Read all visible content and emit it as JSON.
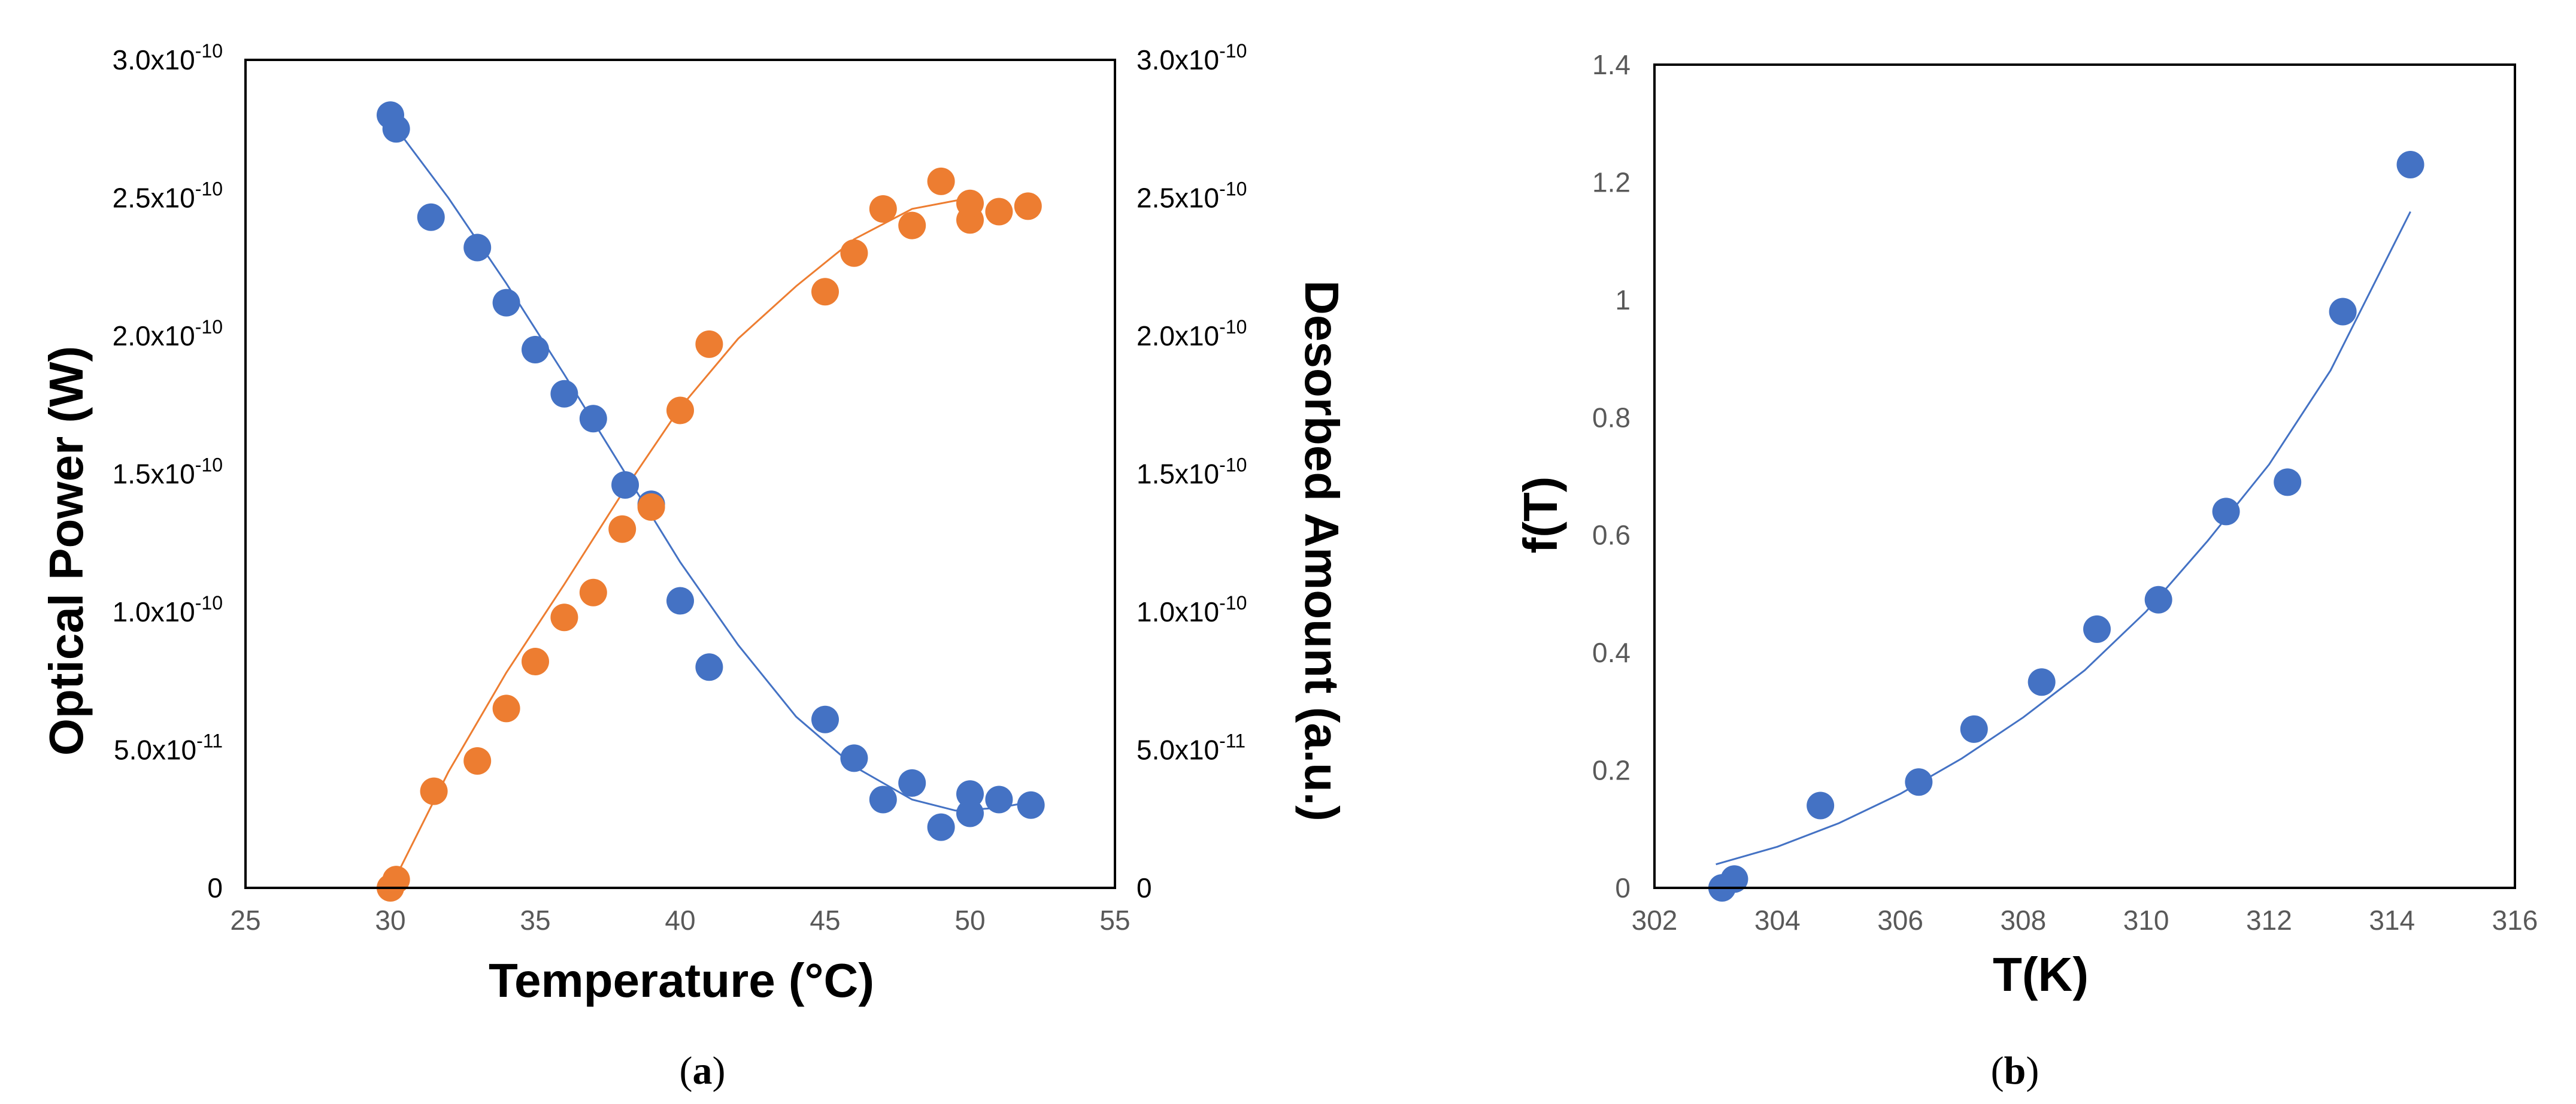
{
  "colors": {
    "series1": "#4472C4",
    "series2": "#ED7D31",
    "axis": "#000000",
    "tick_text": "#595959"
  },
  "chart_data": [
    {
      "type": "scatter",
      "panel_label": {
        "open": "(",
        "letter": "a",
        "close": ")"
      },
      "xlabel": "Temperature (°C)",
      "ylabel": "Optical Power (W)",
      "y2label": "Desorbed Amount (a.u.)",
      "xlim": [
        25,
        55
      ],
      "ylim": [
        0,
        3e-10
      ],
      "y2lim": [
        0,
        3e-10
      ],
      "x_ticks": [
        "25",
        "30",
        "35",
        "40",
        "45",
        "50",
        "55"
      ],
      "y_ticks": [
        {
          "value": 0,
          "mant": "0",
          "exp": ""
        },
        {
          "value": 5e-11,
          "mant": "5.0x10",
          "exp": "-11"
        },
        {
          "value": 1e-10,
          "mant": "1.0x10",
          "exp": "-10"
        },
        {
          "value": 1.5e-10,
          "mant": "1.5x10",
          "exp": "-10"
        },
        {
          "value": 2e-10,
          "mant": "2.0x10",
          "exp": "-10"
        },
        {
          "value": 2.5e-10,
          "mant": "2.5x10",
          "exp": "-10"
        },
        {
          "value": 3e-10,
          "mant": "3.0x10",
          "exp": "-10"
        }
      ],
      "y2_ticks": [
        {
          "value": 0,
          "mant": "0",
          "exp": ""
        },
        {
          "value": 5e-11,
          "mant": "5.0x10",
          "exp": "-11"
        },
        {
          "value": 1e-10,
          "mant": "1.0x10",
          "exp": "-10"
        },
        {
          "value": 1.5e-10,
          "mant": "1.5x10",
          "exp": "-10"
        },
        {
          "value": 2e-10,
          "mant": "2.0x10",
          "exp": "-10"
        },
        {
          "value": 2.5e-10,
          "mant": "2.5x10",
          "exp": "-10"
        },
        {
          "value": 3e-10,
          "mant": "3.0x10",
          "exp": "-10"
        }
      ],
      "series": [
        {
          "name": "Optical Power",
          "axis": "left",
          "color": "#4472C4",
          "x": [
            30.0,
            30.2,
            31.4,
            33.0,
            34.0,
            35.0,
            36.0,
            37.0,
            38.1,
            39.0,
            40.0,
            41.0,
            45.0,
            46.0,
            47.0,
            48.0,
            49.0,
            50.0,
            50.0,
            51.0,
            52.1
          ],
          "y": [
            2.8e-10,
            2.75e-10,
            2.43e-10,
            2.32e-10,
            2.12e-10,
            1.95e-10,
            1.79e-10,
            1.7e-10,
            1.46e-10,
            1.39e-10,
            1.04e-10,
            8e-11,
            6.1e-11,
            4.7e-11,
            3.2e-11,
            3.8e-11,
            2.2e-11,
            2.7e-11,
            3.4e-11,
            3.2e-11,
            3e-11
          ],
          "fit": {
            "x": [
              30,
              32,
              34,
              36,
              38,
              40,
              42,
              44,
              46,
              48,
              49.5,
              51,
              52
            ],
            "y": [
              2.78e-10,
              2.5e-10,
              2.19e-10,
              1.86e-10,
              1.52e-10,
              1.18e-10,
              8.8e-11,
              6.2e-11,
              4.4e-11,
              3.2e-11,
              2.8e-11,
              2.9e-11,
              3.1e-11
            ]
          }
        },
        {
          "name": "Desorbed Amount",
          "axis": "right",
          "color": "#ED7D31",
          "x": [
            30.0,
            30.2,
            31.5,
            33.0,
            34.0,
            35.0,
            36.0,
            37.0,
            38.0,
            39.0,
            40.0,
            41.0,
            45.0,
            46.0,
            47.0,
            48.0,
            49.0,
            50.0,
            50.0,
            51.0,
            52.0
          ],
          "y": [
            0.0,
            3e-12,
            3.5e-11,
            4.6e-11,
            6.5e-11,
            8.2e-11,
            9.8e-11,
            1.07e-10,
            1.3e-10,
            1.38e-10,
            1.73e-10,
            1.97e-10,
            2.16e-10,
            2.3e-10,
            2.46e-10,
            2.4e-10,
            2.56e-10,
            2.42e-10,
            2.48e-10,
            2.45e-10,
            2.47e-10
          ],
          "fit": {
            "x": [
              30,
              32,
              34,
              36,
              38,
              40,
              42,
              44,
              46,
              48,
              50
            ],
            "y": [
              0.0,
              4.2e-11,
              7.8e-11,
              1.1e-10,
              1.43e-10,
              1.74e-10,
              1.99e-10,
              2.18e-10,
              2.35e-10,
              2.46e-10,
              2.5e-10
            ]
          }
        }
      ]
    },
    {
      "type": "scatter",
      "panel_label": {
        "open": "(",
        "letter": "b",
        "close": ")"
      },
      "xlabel": "T(K)",
      "ylabel": "f(T)",
      "xlim": [
        302,
        316
      ],
      "ylim": [
        0,
        1.4
      ],
      "x_ticks": [
        "302",
        "304",
        "306",
        "308",
        "310",
        "312",
        "314",
        "316"
      ],
      "y_ticks": [
        "0",
        "0.2",
        "0.4",
        "0.6",
        "0.8",
        "1",
        "1.2",
        "1.4"
      ],
      "series": [
        {
          "name": "f(T)",
          "color": "#4472C4",
          "x": [
            303.1,
            303.3,
            304.7,
            306.3,
            307.2,
            308.3,
            309.2,
            310.2,
            311.3,
            312.3,
            313.2,
            314.3
          ],
          "y": [
            0.0,
            0.015,
            0.14,
            0.18,
            0.27,
            0.35,
            0.44,
            0.49,
            0.64,
            0.69,
            0.98,
            1.23
          ],
          "fit": {
            "x": [
              303,
              304,
              305,
              306,
              307,
              308,
              309,
              310,
              311,
              312,
              313,
              314.3
            ],
            "y": [
              0.04,
              0.07,
              0.11,
              0.16,
              0.22,
              0.29,
              0.37,
              0.47,
              0.59,
              0.72,
              0.88,
              1.15
            ]
          }
        }
      ]
    }
  ]
}
